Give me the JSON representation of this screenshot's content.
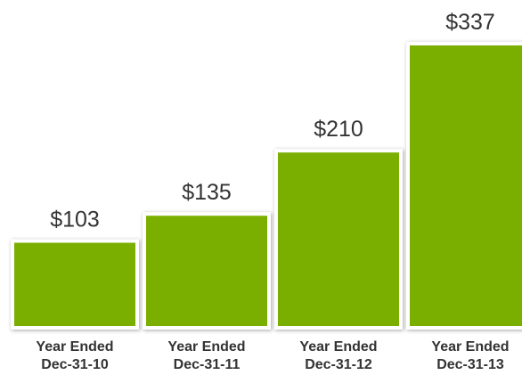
{
  "chart_data": {
    "type": "bar",
    "categories": [
      [
        "Year Ended",
        "Dec-31-10"
      ],
      [
        "Year Ended",
        "Dec-31-11"
      ],
      [
        "Year Ended",
        "Dec-31-12"
      ],
      [
        "Year Ended",
        "Dec-31-13"
      ]
    ],
    "values": [
      103,
      135,
      210,
      337
    ],
    "value_labels": [
      "$103",
      "$135",
      "$210",
      "$337"
    ],
    "color": "#7aaf00"
  }
}
